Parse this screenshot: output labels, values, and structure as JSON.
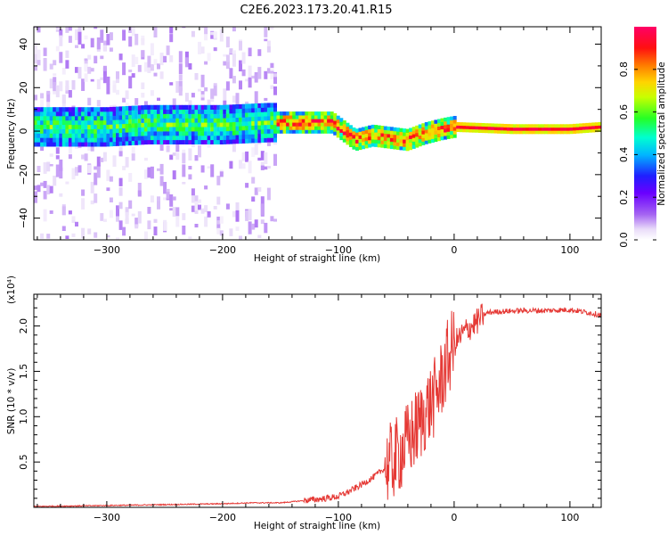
{
  "title": "C2E6.2023.173.20.41.R15",
  "colors": {
    "snr_line": "#e53935",
    "spectrogram_palette": "rainbow (white-violet-blue-cyan-green-yellow-orange-red-magenta)"
  },
  "chart_data": [
    {
      "type": "heatmap",
      "xlabel": "Height of straight line (km)",
      "ylabel": "Frequency (Hz)",
      "xlim": [
        -363,
        127
      ],
      "ylim": [
        -50,
        48
      ],
      "xticks": [
        -300,
        -200,
        -100,
        0,
        100
      ],
      "yticks": [
        -40,
        -20,
        0,
        20,
        40
      ],
      "grid": false,
      "colorbar": {
        "label": "Normalized spectral amplitude",
        "range": [
          0.0,
          1.0
        ],
        "ticks": [
          "0.0",
          "0.2",
          "0.4",
          "0.6",
          "0.8"
        ]
      },
      "ridge_center_hz": [
        {
          "x": -360,
          "y": 2
        },
        {
          "x": -300,
          "y": 2
        },
        {
          "x": -265,
          "y": 3
        },
        {
          "x": -200,
          "y": 3
        },
        {
          "x": -160,
          "y": 4
        },
        {
          "x": -140,
          "y": 4
        },
        {
          "x": -120,
          "y": 4
        },
        {
          "x": -105,
          "y": 4
        },
        {
          "x": -95,
          "y": 0
        },
        {
          "x": -85,
          "y": -4
        },
        {
          "x": -70,
          "y": -2
        },
        {
          "x": -55,
          "y": -3
        },
        {
          "x": -40,
          "y": -4
        },
        {
          "x": -25,
          "y": -1
        },
        {
          "x": -10,
          "y": 1
        },
        {
          "x": 0,
          "y": 2
        },
        {
          "x": 50,
          "y": 1
        },
        {
          "x": 100,
          "y": 1
        },
        {
          "x": 127,
          "y": 2
        }
      ]
    },
    {
      "type": "line",
      "xlabel": "Height of straight line (km)",
      "ylabel": "SNR (10 * v/v)",
      "multiplier": "(x10⁴)",
      "xlim": [
        -363,
        127
      ],
      "ylim": [
        0,
        2.35
      ],
      "xticks": [
        -300,
        -200,
        -100,
        0,
        100
      ],
      "yticks": [
        0.5,
        1.0,
        1.5,
        2.0
      ],
      "grid": false,
      "series": [
        {
          "x": [
            -363,
            -300,
            -250,
            -200,
            -175,
            -150,
            -125,
            -110,
            -100,
            -90,
            -80,
            -70,
            -60,
            -50,
            -40,
            -30,
            -25,
            -20,
            -15,
            -10,
            -5,
            0,
            10,
            20,
            25,
            30,
            40,
            60,
            80,
            100,
            115,
            127
          ],
          "values": [
            0.01,
            0.02,
            0.03,
            0.04,
            0.05,
            0.05,
            0.08,
            0.1,
            0.12,
            0.18,
            0.25,
            0.33,
            0.43,
            0.55,
            0.72,
            0.92,
            1.05,
            1.15,
            1.25,
            1.45,
            1.65,
            1.8,
            1.95,
            2.05,
            2.12,
            2.15,
            2.16,
            2.17,
            2.17,
            2.18,
            2.15,
            2.12
          ]
        }
      ]
    }
  ]
}
